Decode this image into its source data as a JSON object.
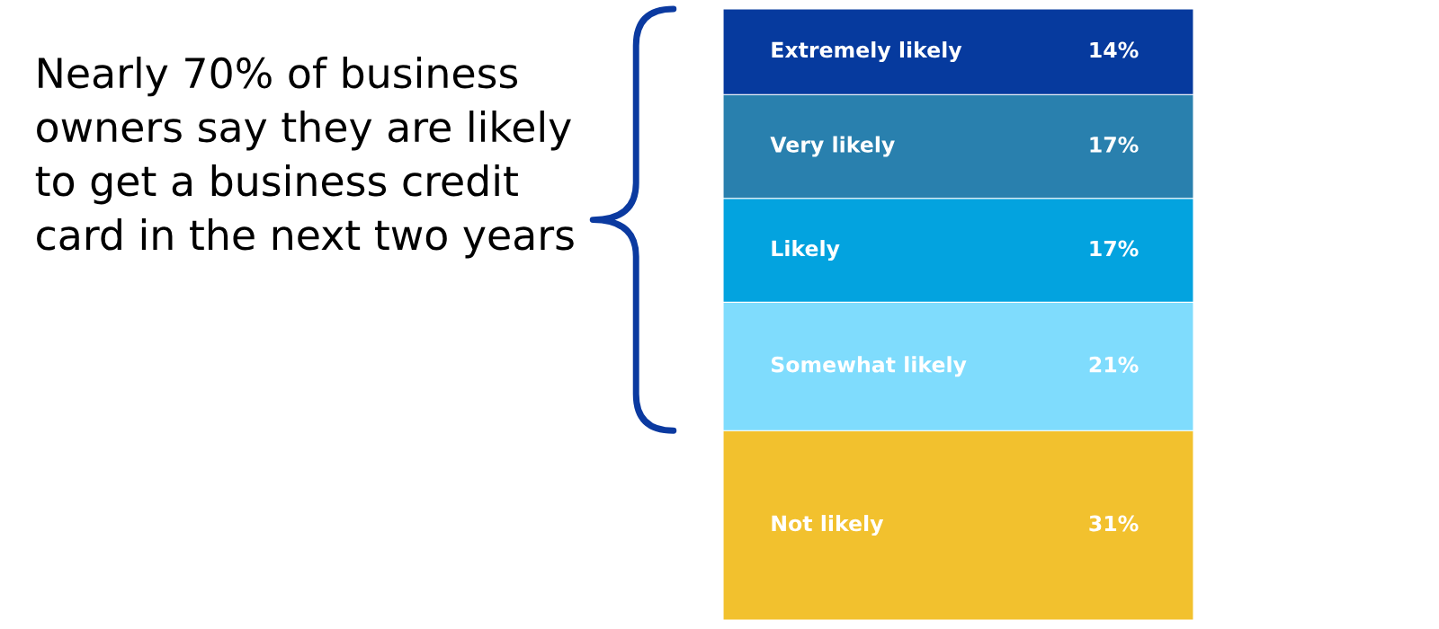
{
  "chart_data": {
    "type": "bar",
    "stacked": true,
    "title": "Nearly 70% of business owners say they are likely to get a business credit card in the next two years",
    "categories": [
      null
    ],
    "legend": false,
    "series": [
      {
        "name": "Not likely",
        "color": "#f2c12e",
        "values": [
          31
        ],
        "value_labels": [
          "31%"
        ]
      },
      {
        "name": "Somewhat likely",
        "color": "#7fdcfd",
        "values": [
          21
        ],
        "value_labels": [
          "21%"
        ]
      },
      {
        "name": "Likely",
        "color": "#03a3df",
        "values": [
          17
        ],
        "value_labels": [
          "17%"
        ]
      },
      {
        "name": "Very likely",
        "color": "#2980ae",
        "values": [
          17
        ],
        "value_labels": [
          "17%"
        ]
      },
      {
        "name": "Extremely likely",
        "color": "#063a9e",
        "values": [
          14
        ],
        "value_labels": [
          "14%"
        ]
      }
    ]
  }
}
